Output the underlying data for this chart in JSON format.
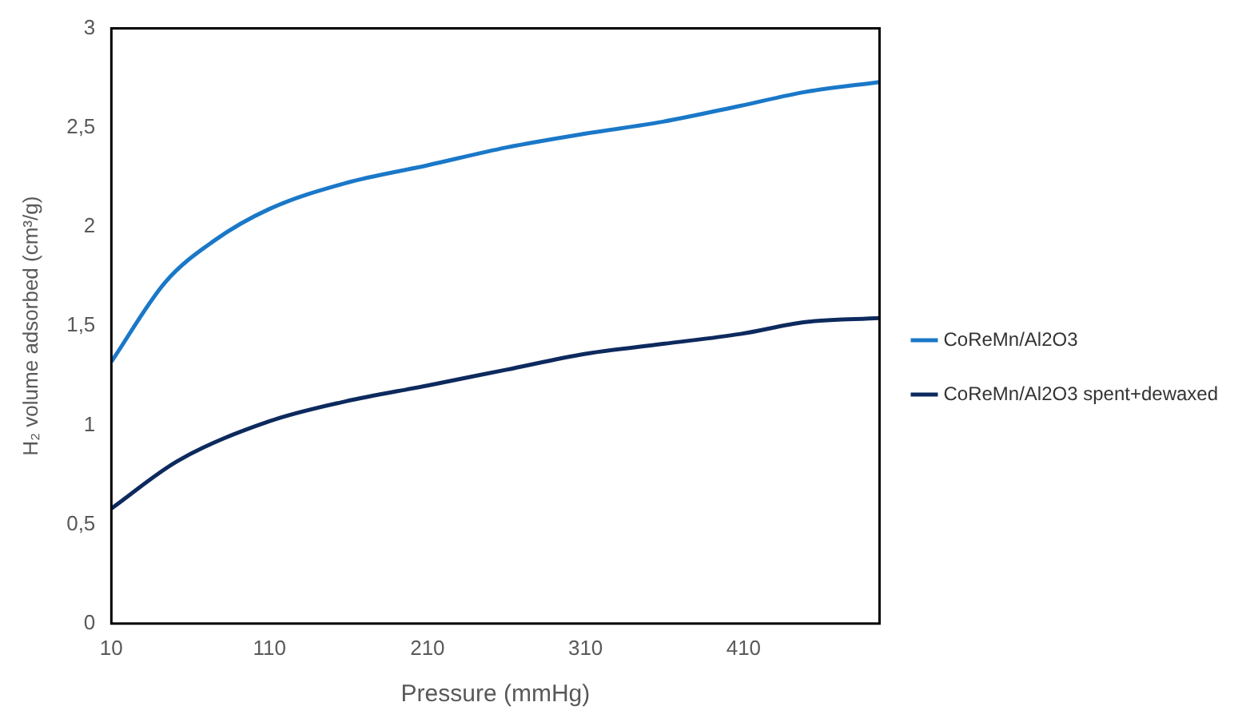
{
  "chart_data": {
    "type": "line",
    "xlabel": "Pressure (mmHg)",
    "ylabel": "H₂ volume adsorbed (cm³/g)",
    "xlim": [
      10,
      496
    ],
    "xticks": [
      10,
      110,
      210,
      310,
      410
    ],
    "ylim": [
      0,
      3
    ],
    "yticks": [
      0,
      {
        "value": 0.5,
        "label": "0,5"
      },
      1,
      {
        "value": 1.5,
        "label": "1,5"
      },
      2,
      {
        "value": 2.5,
        "label": "2,5"
      },
      3
    ],
    "grid": false,
    "legend": "right",
    "marker": "none",
    "line_style": "solid",
    "series": [
      {
        "name": "CoReMn/Al2O3",
        "color": "#1a78c8",
        "x": [
          10,
          44,
          75,
          110,
          158,
          210,
          260,
          310,
          359,
          408,
          449,
          496
        ],
        "values": [
          1.32,
          1.72,
          1.93,
          2.09,
          2.22,
          2.31,
          2.4,
          2.47,
          2.53,
          2.61,
          2.68,
          2.73
        ]
      },
      {
        "name": "CoReMn/Al2O3 spent+dewaxed",
        "color": "#0d2a5e",
        "x": [
          10,
          52,
          110,
          158,
          210,
          260,
          310,
          359,
          408,
          449,
          496
        ],
        "values": [
          0.58,
          0.82,
          1.02,
          1.12,
          1.2,
          1.28,
          1.36,
          1.41,
          1.46,
          1.52,
          1.54
        ]
      }
    ]
  }
}
